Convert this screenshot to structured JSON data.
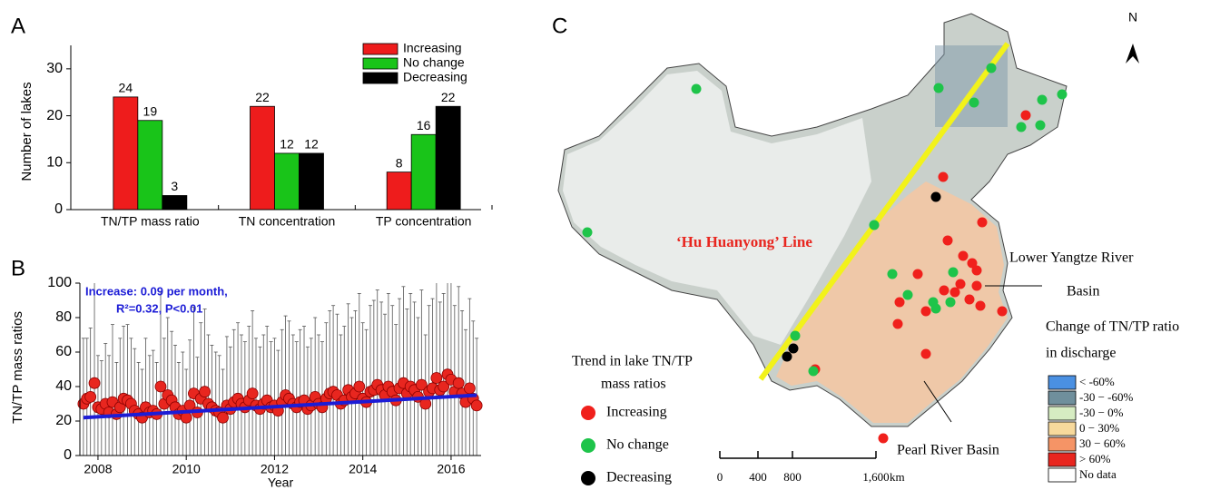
{
  "chart_data": [
    {
      "type": "bar",
      "panel": "A",
      "ylabel": "Number of lakes",
      "categories": [
        "TN/TP mass ratio",
        "TN concentration",
        "TP concentration"
      ],
      "series": [
        {
          "name": "Increasing",
          "color": "#ee1c1c",
          "values": [
            24,
            22,
            8
          ]
        },
        {
          "name": "No change",
          "color": "#19c419",
          "values": [
            19,
            12,
            16
          ]
        },
        {
          "name": "Decreasing",
          "color": "#000000",
          "values": [
            3,
            12,
            22
          ]
        }
      ],
      "ylim": [
        0,
        35
      ],
      "yticks": [
        0,
        10,
        20,
        30
      ],
      "legend": "upper right"
    },
    {
      "type": "scatter",
      "panel": "B",
      "xlabel": "Year",
      "ylabel": "TN/TP mass ratios",
      "annotations": [
        "Increase: 0.09 per month,",
        "R²=0.32, P<0.01"
      ],
      "color": "#e8261f",
      "x": [
        2007.67,
        2007.75,
        2007.83,
        2007.92,
        2008.0,
        2008.08,
        2008.17,
        2008.25,
        2008.33,
        2008.42,
        2008.5,
        2008.58,
        2008.67,
        2008.75,
        2008.83,
        2008.92,
        2009.0,
        2009.08,
        2009.17,
        2009.25,
        2009.33,
        2009.42,
        2009.5,
        2009.58,
        2009.67,
        2009.75,
        2009.83,
        2009.92,
        2010.0,
        2010.08,
        2010.17,
        2010.25,
        2010.33,
        2010.42,
        2010.5,
        2010.58,
        2010.67,
        2010.75,
        2010.83,
        2010.92,
        2011.0,
        2011.08,
        2011.17,
        2011.25,
        2011.33,
        2011.42,
        2011.5,
        2011.58,
        2011.67,
        2011.75,
        2011.83,
        2011.92,
        2012.0,
        2012.08,
        2012.17,
        2012.25,
        2012.33,
        2012.42,
        2012.5,
        2012.58,
        2012.67,
        2012.75,
        2012.83,
        2012.92,
        2013.0,
        2013.08,
        2013.17,
        2013.25,
        2013.33,
        2013.42,
        2013.5,
        2013.58,
        2013.67,
        2013.75,
        2013.83,
        2013.92,
        2014.0,
        2014.08,
        2014.17,
        2014.25,
        2014.33,
        2014.42,
        2014.5,
        2014.58,
        2014.67,
        2014.75,
        2014.83,
        2014.92,
        2015.0,
        2015.08,
        2015.17,
        2015.25,
        2015.33,
        2015.42,
        2015.5,
        2015.58,
        2015.67,
        2015.75,
        2015.83,
        2015.92,
        2016.0,
        2016.08,
        2016.17,
        2016.25,
        2016.33,
        2016.42,
        2016.5,
        2016.58
      ],
      "values": [
        30,
        33,
        34,
        42,
        28,
        27,
        30,
        25,
        31,
        24,
        28,
        33,
        32,
        30,
        26,
        24,
        22,
        28,
        25,
        26,
        24,
        40,
        30,
        35,
        32,
        28,
        24,
        26,
        22,
        29,
        36,
        25,
        33,
        37,
        30,
        28,
        26,
        25,
        22,
        29,
        27,
        31,
        33,
        30,
        28,
        32,
        36,
        29,
        27,
        30,
        32,
        28,
        29,
        26,
        31,
        35,
        33,
        30,
        28,
        31,
        32,
        27,
        29,
        34,
        30,
        28,
        33,
        36,
        37,
        35,
        30,
        32,
        38,
        34,
        36,
        40,
        33,
        31,
        37,
        38,
        41,
        38,
        35,
        40,
        37,
        32,
        39,
        42,
        36,
        40,
        38,
        34,
        41,
        30,
        37,
        39,
        45,
        38,
        40,
        47,
        44,
        37,
        42,
        36,
        31,
        39,
        33,
        29
      ],
      "errors": [
        38,
        35,
        40,
        60,
        30,
        28,
        35,
        33,
        45,
        30,
        40,
        42,
        44,
        38,
        36,
        30,
        28,
        40,
        33,
        35,
        30,
        55,
        38,
        45,
        40,
        36,
        30,
        34,
        28,
        38,
        50,
        32,
        44,
        48,
        40,
        36,
        34,
        33,
        28,
        40,
        36,
        42,
        44,
        40,
        38,
        43,
        48,
        39,
        36,
        40,
        43,
        38,
        39,
        35,
        42,
        46,
        45,
        40,
        38,
        42,
        43,
        36,
        39,
        46,
        40,
        38,
        44,
        48,
        50,
        47,
        40,
        43,
        50,
        46,
        48,
        54,
        44,
        42,
        50,
        52,
        55,
        51,
        47,
        54,
        50,
        44,
        52,
        56,
        49,
        54,
        51,
        46,
        55,
        40,
        50,
        52,
        60,
        51,
        54,
        63,
        59,
        50,
        56,
        48,
        42,
        52,
        45,
        39
      ],
      "trend": {
        "color": "#1c1cd6",
        "x": [
          2007.67,
          2016.58
        ],
        "values": [
          22,
          35
        ]
      },
      "xlim": [
        2007.59,
        2016.68
      ],
      "xticks": [
        2008,
        2010,
        2012,
        2014,
        2016
      ],
      "ylim": [
        0,
        100
      ],
      "yticks": [
        0,
        20,
        40,
        60,
        80,
        100
      ]
    }
  ],
  "map": {
    "panel": "C",
    "north": "N",
    "line_label": "‘Hu Huanyong’ Line",
    "basins": [
      "Lower Yangtze River",
      "Basin",
      "Pearl River Basin"
    ],
    "discharge_legend": {
      "title": [
        "Change of TN/TP ratio",
        "in discharge"
      ],
      "items": [
        {
          "label": "< -60%",
          "color": "#4a90e2"
        },
        {
          "label": "-30 − -60%",
          "color": "#6f8f9c"
        },
        {
          "label": "-30 − 0%",
          "color": "#d6ecc2"
        },
        {
          "label": "0 −  30%",
          "color": "#f7d99c"
        },
        {
          "label": "30 − 60%",
          "color": "#f59466"
        },
        {
          "label": "> 60%",
          "color": "#e8261f"
        },
        {
          "label": "No data",
          "color": "#ffffff"
        }
      ]
    },
    "trend_legend": {
      "title": [
        "Trend in lake TN/TP",
        "mass ratios"
      ],
      "items": [
        {
          "label": "Increasing",
          "color": "#f0201c"
        },
        {
          "label": "No change",
          "color": "#1ec44a"
        },
        {
          "label": "Decreasing",
          "color": "#000000"
        }
      ]
    },
    "scale": {
      "labels": [
        "0",
        "400",
        "800",
        "1,600"
      ],
      "unit": "km"
    }
  }
}
